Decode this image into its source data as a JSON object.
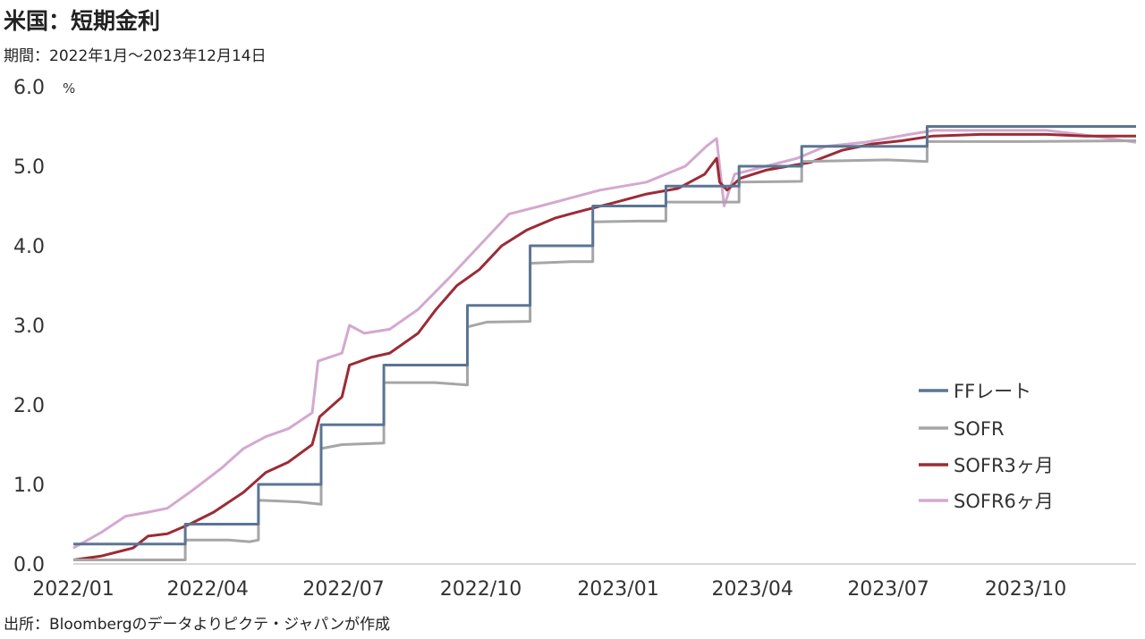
{
  "title": "米国：短期金利",
  "subtitle": "期間：2022年1月～2023年12月14日",
  "source": "出所：Bloombergのデータよりピクテ・ジャパンが作成",
  "chart_data": {
    "type": "line",
    "ylabel": "%",
    "ylim": [
      0,
      6
    ],
    "y_ticks": [
      "0.0",
      "1.0",
      "2.0",
      "3.0",
      "4.0",
      "5.0",
      "6.0"
    ],
    "x_ticks": [
      "2022/01",
      "2022/04",
      "2022/07",
      "2022/10",
      "2023/01",
      "2023/04",
      "2023/07",
      "2023/10"
    ],
    "xlim": [
      "2022-01-01",
      "2023-12-14"
    ],
    "grid": false,
    "legend_position": "bottom-right",
    "series": [
      {
        "name": "FFレート",
        "color": "#5b7593",
        "points": [
          [
            "2022-01-01",
            0.25
          ],
          [
            "2022-03-17",
            0.25
          ],
          [
            "2022-03-17",
            0.5
          ],
          [
            "2022-05-05",
            0.5
          ],
          [
            "2022-05-05",
            1.0
          ],
          [
            "2022-06-16",
            1.0
          ],
          [
            "2022-06-16",
            1.75
          ],
          [
            "2022-07-28",
            1.75
          ],
          [
            "2022-07-28",
            2.5
          ],
          [
            "2022-09-22",
            2.5
          ],
          [
            "2022-09-22",
            3.25
          ],
          [
            "2022-11-03",
            3.25
          ],
          [
            "2022-11-03",
            4.0
          ],
          [
            "2022-12-15",
            4.0
          ],
          [
            "2022-12-15",
            4.5
          ],
          [
            "2023-02-02",
            4.5
          ],
          [
            "2023-02-02",
            4.75
          ],
          [
            "2023-03-23",
            4.75
          ],
          [
            "2023-03-23",
            5.0
          ],
          [
            "2023-05-04",
            5.0
          ],
          [
            "2023-05-04",
            5.25
          ],
          [
            "2023-07-27",
            5.25
          ],
          [
            "2023-07-27",
            5.5
          ],
          [
            "2023-12-14",
            5.5
          ]
        ]
      },
      {
        "name": "SOFR",
        "color": "#a6a6a6",
        "points": [
          [
            "2022-01-01",
            0.05
          ],
          [
            "2022-03-17",
            0.05
          ],
          [
            "2022-03-17",
            0.3
          ],
          [
            "2022-04-15",
            0.3
          ],
          [
            "2022-04-29",
            0.28
          ],
          [
            "2022-05-05",
            0.3
          ],
          [
            "2022-05-05",
            0.8
          ],
          [
            "2022-05-20",
            0.79
          ],
          [
            "2022-06-01",
            0.78
          ],
          [
            "2022-06-16",
            0.75
          ],
          [
            "2022-06-16",
            1.45
          ],
          [
            "2022-06-30",
            1.5
          ],
          [
            "2022-07-28",
            1.52
          ],
          [
            "2022-07-28",
            2.28
          ],
          [
            "2022-08-31",
            2.28
          ],
          [
            "2022-09-22",
            2.25
          ],
          [
            "2022-09-22",
            2.98
          ],
          [
            "2022-10-05",
            3.04
          ],
          [
            "2022-11-03",
            3.05
          ],
          [
            "2022-11-03",
            3.78
          ],
          [
            "2022-11-30",
            3.8
          ],
          [
            "2022-12-15",
            3.8
          ],
          [
            "2022-12-15",
            4.3
          ],
          [
            "2023-01-15",
            4.31
          ],
          [
            "2023-02-02",
            4.31
          ],
          [
            "2023-02-02",
            4.55
          ],
          [
            "2023-03-23",
            4.55
          ],
          [
            "2023-03-23",
            4.8
          ],
          [
            "2023-05-04",
            4.81
          ],
          [
            "2023-05-04",
            5.06
          ],
          [
            "2023-06-30",
            5.08
          ],
          [
            "2023-07-27",
            5.06
          ],
          [
            "2023-07-27",
            5.31
          ],
          [
            "2023-10-01",
            5.31
          ],
          [
            "2023-12-14",
            5.32
          ]
        ]
      },
      {
        "name": "SOFR3ヶ月",
        "color": "#9c2b36",
        "points": [
          [
            "2022-01-01",
            0.05
          ],
          [
            "2022-01-20",
            0.1
          ],
          [
            "2022-02-10",
            0.2
          ],
          [
            "2022-02-20",
            0.35
          ],
          [
            "2022-03-05",
            0.38
          ],
          [
            "2022-03-20",
            0.5
          ],
          [
            "2022-04-05",
            0.65
          ],
          [
            "2022-04-25",
            0.9
          ],
          [
            "2022-05-10",
            1.15
          ],
          [
            "2022-05-25",
            1.28
          ],
          [
            "2022-06-10",
            1.5
          ],
          [
            "2022-06-15",
            1.85
          ],
          [
            "2022-06-30",
            2.1
          ],
          [
            "2022-07-05",
            2.5
          ],
          [
            "2022-07-20",
            2.6
          ],
          [
            "2022-08-01",
            2.65
          ],
          [
            "2022-08-20",
            2.9
          ],
          [
            "2022-09-01",
            3.2
          ],
          [
            "2022-09-15",
            3.5
          ],
          [
            "2022-09-30",
            3.7
          ],
          [
            "2022-10-15",
            4.0
          ],
          [
            "2022-11-01",
            4.2
          ],
          [
            "2022-11-20",
            4.35
          ],
          [
            "2022-12-10",
            4.45
          ],
          [
            "2022-12-31",
            4.55
          ],
          [
            "2023-01-20",
            4.65
          ],
          [
            "2023-02-10",
            4.72
          ],
          [
            "2023-02-28",
            4.9
          ],
          [
            "2023-03-08",
            5.1
          ],
          [
            "2023-03-10",
            4.8
          ],
          [
            "2023-03-15",
            4.7
          ],
          [
            "2023-03-24",
            4.85
          ],
          [
            "2023-04-10",
            4.95
          ],
          [
            "2023-04-25",
            5.0
          ],
          [
            "2023-05-10",
            5.05
          ],
          [
            "2023-05-31",
            5.2
          ],
          [
            "2023-06-20",
            5.28
          ],
          [
            "2023-07-10",
            5.32
          ],
          [
            "2023-07-31",
            5.38
          ],
          [
            "2023-09-01",
            5.4
          ],
          [
            "2023-10-15",
            5.4
          ],
          [
            "2023-11-10",
            5.38
          ],
          [
            "2023-12-14",
            5.38
          ]
        ]
      },
      {
        "name": "SOFR6ヶ月",
        "color": "#d4a8cf",
        "points": [
          [
            "2022-01-01",
            0.2
          ],
          [
            "2022-01-20",
            0.4
          ],
          [
            "2022-02-05",
            0.6
          ],
          [
            "2022-02-20",
            0.65
          ],
          [
            "2022-03-05",
            0.7
          ],
          [
            "2022-03-20",
            0.9
          ],
          [
            "2022-04-10",
            1.2
          ],
          [
            "2022-04-25",
            1.45
          ],
          [
            "2022-05-10",
            1.6
          ],
          [
            "2022-05-25",
            1.7
          ],
          [
            "2022-06-10",
            1.9
          ],
          [
            "2022-06-14",
            2.55
          ],
          [
            "2022-06-30",
            2.65
          ],
          [
            "2022-07-05",
            3.0
          ],
          [
            "2022-07-15",
            2.9
          ],
          [
            "2022-08-01",
            2.95
          ],
          [
            "2022-08-20",
            3.2
          ],
          [
            "2022-09-10",
            3.6
          ],
          [
            "2022-09-30",
            4.0
          ],
          [
            "2022-10-20",
            4.4
          ],
          [
            "2022-11-10",
            4.5
          ],
          [
            "2022-11-30",
            4.6
          ],
          [
            "2022-12-20",
            4.7
          ],
          [
            "2023-01-20",
            4.8
          ],
          [
            "2023-02-15",
            5.0
          ],
          [
            "2023-03-01",
            5.25
          ],
          [
            "2023-03-08",
            5.35
          ],
          [
            "2023-03-10",
            5.0
          ],
          [
            "2023-03-13",
            4.5
          ],
          [
            "2023-03-20",
            4.9
          ],
          [
            "2023-04-10",
            5.0
          ],
          [
            "2023-05-01",
            5.1
          ],
          [
            "2023-05-20",
            5.25
          ],
          [
            "2023-06-15",
            5.3
          ],
          [
            "2023-07-15",
            5.4
          ],
          [
            "2023-08-01",
            5.45
          ],
          [
            "2023-09-01",
            5.45
          ],
          [
            "2023-10-15",
            5.45
          ],
          [
            "2023-11-15",
            5.38
          ],
          [
            "2023-12-14",
            5.3
          ]
        ]
      }
    ]
  }
}
